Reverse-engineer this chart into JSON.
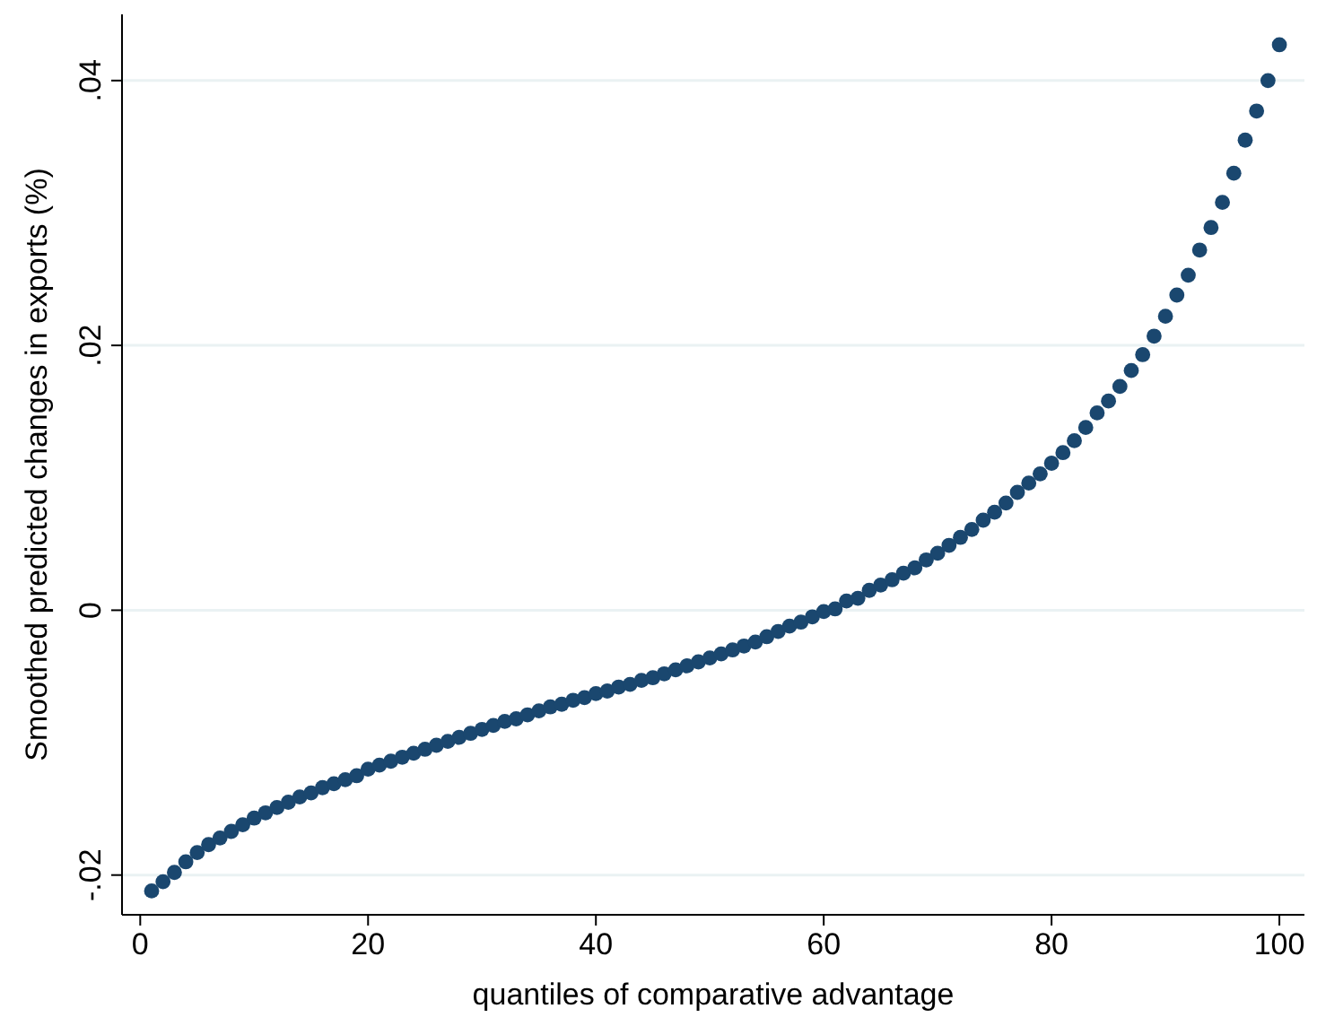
{
  "chart_data": {
    "type": "scatter",
    "xlabel": "quantiles of comparative advantage",
    "ylabel": "Smoothed predicted changes in exports (%)",
    "x": [
      1,
      2,
      3,
      4,
      5,
      6,
      7,
      8,
      9,
      10,
      11,
      12,
      13,
      14,
      15,
      16,
      17,
      18,
      19,
      20,
      21,
      22,
      23,
      24,
      25,
      26,
      27,
      28,
      29,
      30,
      31,
      32,
      33,
      34,
      35,
      36,
      37,
      38,
      39,
      40,
      41,
      42,
      43,
      44,
      45,
      46,
      47,
      48,
      49,
      50,
      51,
      52,
      53,
      54,
      55,
      56,
      57,
      58,
      59,
      60,
      61,
      62,
      63,
      64,
      65,
      66,
      67,
      68,
      69,
      70,
      71,
      72,
      73,
      74,
      75,
      76,
      77,
      78,
      79,
      80,
      81,
      82,
      83,
      84,
      85,
      86,
      87,
      88,
      89,
      90,
      91,
      92,
      93,
      94,
      95,
      96,
      97,
      98,
      99,
      100
    ],
    "series": [
      {
        "color": "#1a476f",
        "values": [
          -0.0212,
          -0.0205,
          -0.0198,
          -0.019,
          -0.0183,
          -0.0177,
          -0.0172,
          -0.0167,
          -0.0162,
          -0.0157,
          -0.0153,
          -0.0149,
          -0.0145,
          -0.0141,
          -0.0138,
          -0.0134,
          -0.0131,
          -0.0128,
          -0.0125,
          -0.012,
          -0.0117,
          -0.0114,
          -0.0111,
          -0.0108,
          -0.0105,
          -0.0102,
          -0.0099,
          -0.0096,
          -0.0093,
          -0.009,
          -0.0087,
          -0.0084,
          -0.0082,
          -0.0079,
          -0.0076,
          -0.0073,
          -0.0071,
          -0.0068,
          -0.0066,
          -0.0063,
          -0.0061,
          -0.0058,
          -0.0056,
          -0.0053,
          -0.0051,
          -0.0048,
          -0.0045,
          -0.0042,
          -0.0039,
          -0.0036,
          -0.0033,
          -0.003,
          -0.0027,
          -0.0024,
          -0.002,
          -0.0016,
          -0.0012,
          -0.0009,
          -0.0005,
          -0.0001,
          0.0001,
          0.0007,
          0.0009,
          0.0015,
          0.0019,
          0.0023,
          0.0028,
          0.0032,
          0.0038,
          0.0043,
          0.0049,
          0.0055,
          0.0061,
          0.0068,
          0.0074,
          0.0081,
          0.0089,
          0.0096,
          0.0103,
          0.0111,
          0.0119,
          0.0128,
          0.0138,
          0.0149,
          0.0158,
          0.0169,
          0.0181,
          0.0193,
          0.0207,
          0.0222,
          0.0238,
          0.0253,
          0.0272,
          0.0289,
          0.0308,
          0.033,
          0.0355,
          0.0377,
          0.04,
          0.0427
        ]
      }
    ],
    "xlim": [
      -1.6,
      102.2
    ],
    "xticks": [
      0,
      20,
      40,
      60,
      80,
      100
    ],
    "ylim": [
      -0.023,
      0.045
    ],
    "yticks": [
      {
        "value": -0.02,
        "label": "-.02"
      },
      {
        "value": 0,
        "label": "0"
      },
      {
        "value": 0.02,
        "label": ".02"
      },
      {
        "value": 0.04,
        "label": ".04"
      }
    ],
    "grid": "y",
    "marker": "circle"
  }
}
